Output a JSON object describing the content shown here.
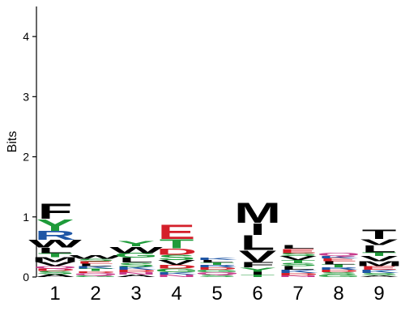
{
  "chart_data": {
    "type": "sequence-logo",
    "ylabel": "Bits",
    "ylim": [
      0,
      4.5
    ],
    "yticks": [
      "0",
      "1",
      "2",
      "3",
      "4"
    ],
    "colors": {
      "hydrophobic": "#000000",
      "polar": "#1f9b3a",
      "basic": "#1f56a5",
      "acidic": "#d41f2a",
      "amide": "#c83c8c"
    },
    "positions": [
      {
        "label": "1",
        "stack": [
          {
            "letter": "A",
            "bits": 0.05,
            "group": "hydrophobic"
          },
          {
            "letter": "S",
            "bits": 0.05,
            "group": "polar"
          },
          {
            "letter": "D",
            "bits": 0.04,
            "group": "acidic"
          },
          {
            "letter": "Q",
            "bits": 0.04,
            "group": "amide"
          },
          {
            "letter": "V",
            "bits": 0.07,
            "group": "hydrophobic"
          },
          {
            "letter": "M",
            "bits": 0.08,
            "group": "hydrophobic"
          },
          {
            "letter": "T",
            "bits": 0.07,
            "group": "polar"
          },
          {
            "letter": "L",
            "bits": 0.09,
            "group": "hydrophobic"
          },
          {
            "letter": "W",
            "bits": 0.13,
            "group": "hydrophobic"
          },
          {
            "letter": "R",
            "bits": 0.15,
            "group": "basic"
          },
          {
            "letter": "Y",
            "bits": 0.2,
            "group": "polar"
          },
          {
            "letter": "F",
            "bits": 0.26,
            "group": "hydrophobic"
          }
        ]
      },
      {
        "label": "2",
        "stack": [
          {
            "letter": "G",
            "bits": 0.03,
            "group": "polar"
          },
          {
            "letter": "Q",
            "bits": 0.04,
            "group": "amide"
          },
          {
            "letter": "D",
            "bits": 0.03,
            "group": "acidic"
          },
          {
            "letter": "T",
            "bits": 0.04,
            "group": "polar"
          },
          {
            "letter": "K",
            "bits": 0.04,
            "group": "basic"
          },
          {
            "letter": "L",
            "bits": 0.04,
            "group": "hydrophobic"
          },
          {
            "letter": "E",
            "bits": 0.04,
            "group": "acidic"
          },
          {
            "letter": "S",
            "bits": 0.04,
            "group": "polar"
          },
          {
            "letter": "W",
            "bits": 0.06,
            "group": "hydrophobic"
          }
        ]
      },
      {
        "label": "3",
        "stack": [
          {
            "letter": "A",
            "bits": 0.04,
            "group": "hydrophobic"
          },
          {
            "letter": "N",
            "bits": 0.04,
            "group": "amide"
          },
          {
            "letter": "D",
            "bits": 0.04,
            "group": "acidic"
          },
          {
            "letter": "K",
            "bits": 0.05,
            "group": "basic"
          },
          {
            "letter": "S",
            "bits": 0.07,
            "group": "polar"
          },
          {
            "letter": "L",
            "bits": 0.08,
            "group": "hydrophobic"
          },
          {
            "letter": "G",
            "bits": 0.08,
            "group": "polar"
          },
          {
            "letter": "W",
            "bits": 0.11,
            "group": "hydrophobic"
          },
          {
            "letter": "Y",
            "bits": 0.09,
            "group": "polar"
          }
        ]
      },
      {
        "label": "4",
        "stack": [
          {
            "letter": "N",
            "bits": 0.04,
            "group": "amide"
          },
          {
            "letter": "K",
            "bits": 0.04,
            "group": "basic"
          },
          {
            "letter": "G",
            "bits": 0.06,
            "group": "polar"
          },
          {
            "letter": "D",
            "bits": 0.06,
            "group": "acidic"
          },
          {
            "letter": "V",
            "bits": 0.08,
            "group": "hydrophobic"
          },
          {
            "letter": "S",
            "bits": 0.09,
            "group": "polar"
          },
          {
            "letter": "D",
            "bits": 0.11,
            "group": "acidic"
          },
          {
            "letter": "T",
            "bits": 0.15,
            "group": "polar"
          },
          {
            "letter": "E",
            "bits": 0.24,
            "group": "acidic"
          }
        ]
      },
      {
        "label": "5",
        "stack": [
          {
            "letter": "S",
            "bits": 0.04,
            "group": "polar"
          },
          {
            "letter": "Q",
            "bits": 0.04,
            "group": "amide"
          },
          {
            "letter": "G",
            "bits": 0.04,
            "group": "polar"
          },
          {
            "letter": "D",
            "bits": 0.04,
            "group": "acidic"
          },
          {
            "letter": "R",
            "bits": 0.04,
            "group": "basic"
          },
          {
            "letter": "T",
            "bits": 0.04,
            "group": "polar"
          },
          {
            "letter": "L",
            "bits": 0.04,
            "group": "hydrophobic"
          },
          {
            "letter": "K",
            "bits": 0.04,
            "group": "basic"
          }
        ]
      },
      {
        "label": "6",
        "stack": [
          {
            "letter": "T",
            "bits": 0.04,
            "group": "polar"
          },
          {
            "letter": "I",
            "bits": 0.05,
            "group": "hydrophobic"
          },
          {
            "letter": "Y",
            "bits": 0.07,
            "group": "polar"
          },
          {
            "letter": "F",
            "bits": 0.09,
            "group": "hydrophobic"
          },
          {
            "letter": "V",
            "bits": 0.2,
            "group": "hydrophobic"
          },
          {
            "letter": "L",
            "bits": 0.25,
            "group": "hydrophobic"
          },
          {
            "letter": "I",
            "bits": 0.2,
            "group": "hydrophobic"
          },
          {
            "letter": "M",
            "bits": 0.34,
            "group": "hydrophobic"
          }
        ]
      },
      {
        "label": "7",
        "stack": [
          {
            "letter": "N",
            "bits": 0.03,
            "group": "amide"
          },
          {
            "letter": "D",
            "bits": 0.04,
            "group": "acidic"
          },
          {
            "letter": "K",
            "bits": 0.05,
            "group": "basic"
          },
          {
            "letter": "L",
            "bits": 0.06,
            "group": "hydrophobic"
          },
          {
            "letter": "S",
            "bits": 0.05,
            "group": "polar"
          },
          {
            "letter": "T",
            "bits": 0.05,
            "group": "polar"
          },
          {
            "letter": "V",
            "bits": 0.07,
            "group": "hydrophobic"
          },
          {
            "letter": "S",
            "bits": 0.05,
            "group": "polar"
          },
          {
            "letter": "E",
            "bits": 0.07,
            "group": "acidic"
          },
          {
            "letter": "L",
            "bits": 0.06,
            "group": "hydrophobic"
          }
        ]
      },
      {
        "label": "8",
        "stack": [
          {
            "letter": "G",
            "bits": 0.04,
            "group": "polar"
          },
          {
            "letter": "S",
            "bits": 0.04,
            "group": "polar"
          },
          {
            "letter": "D",
            "bits": 0.04,
            "group": "acidic"
          },
          {
            "letter": "R",
            "bits": 0.04,
            "group": "basic"
          },
          {
            "letter": "T",
            "bits": 0.05,
            "group": "polar"
          },
          {
            "letter": "L",
            "bits": 0.05,
            "group": "hydrophobic"
          },
          {
            "letter": "E",
            "bits": 0.05,
            "group": "acidic"
          },
          {
            "letter": "K",
            "bits": 0.04,
            "group": "basic"
          },
          {
            "letter": "Q",
            "bits": 0.05,
            "group": "amide"
          }
        ]
      },
      {
        "label": "9",
        "stack": [
          {
            "letter": "A",
            "bits": 0.03,
            "group": "hydrophobic"
          },
          {
            "letter": "S",
            "bits": 0.04,
            "group": "polar"
          },
          {
            "letter": "K",
            "bits": 0.05,
            "group": "basic"
          },
          {
            "letter": "E",
            "bits": 0.06,
            "group": "acidic"
          },
          {
            "letter": "M",
            "bits": 0.08,
            "group": "hydrophobic"
          },
          {
            "letter": "V",
            "bits": 0.09,
            "group": "hydrophobic"
          },
          {
            "letter": "T",
            "bits": 0.06,
            "group": "polar"
          },
          {
            "letter": "L",
            "bits": 0.12,
            "group": "hydrophobic"
          },
          {
            "letter": "V",
            "bits": 0.1,
            "group": "hydrophobic"
          },
          {
            "letter": "T",
            "bits": 0.16,
            "group": "hydrophobic"
          }
        ]
      }
    ]
  }
}
